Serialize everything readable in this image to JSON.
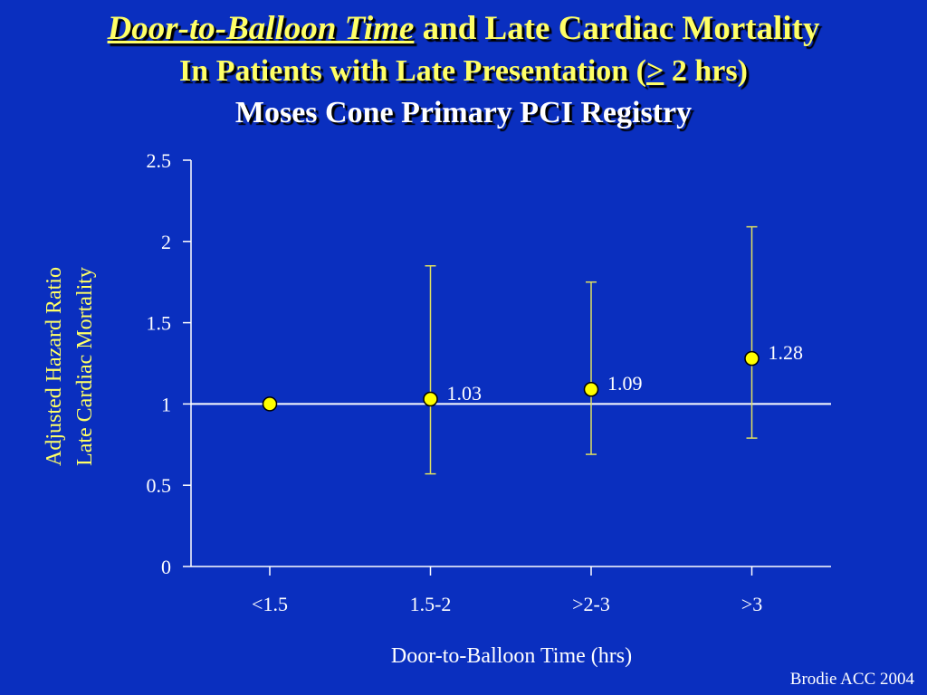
{
  "title": {
    "line1_emphasis": "Door-to-Balloon Time",
    "line1_rest": " and Late Cardiac Mortality",
    "line2_prefix": "In Patients with Late Presentation (",
    "line2_symbol": ">",
    "line2_suffix": " 2 hrs)",
    "line3": "Moses Cone Primary PCI Registry"
  },
  "credit": "Brodie ACC 2004",
  "chart_data": {
    "type": "scatter",
    "categories": [
      "<1.5",
      "1.5-2",
      ">2-3",
      ">3"
    ],
    "values": [
      1.0,
      1.03,
      1.09,
      1.28
    ],
    "ci_lower": [
      null,
      0.57,
      0.69,
      0.79
    ],
    "ci_upper": [
      null,
      1.85,
      1.75,
      2.09
    ],
    "data_labels": [
      "",
      "1.03",
      "1.09",
      "1.28"
    ],
    "xlabel": "Door-to-Balloon Time (hrs)",
    "ylabel_lines": [
      "Adjusted Hazard Ratio",
      "Late Cardiac Mortality"
    ],
    "ylim": [
      0,
      2.5
    ],
    "yticks": [
      0,
      0.5,
      1,
      1.5,
      2,
      2.5
    ],
    "ytick_labels": [
      "0",
      "0.5",
      "1",
      "1.5",
      "2",
      "2.5"
    ],
    "reference_line": 1,
    "grid": false,
    "colors": {
      "background": "#0a2fbf",
      "marker": "#ffff00",
      "error_bar": "#e0e060",
      "axis": "#ffffff"
    }
  }
}
